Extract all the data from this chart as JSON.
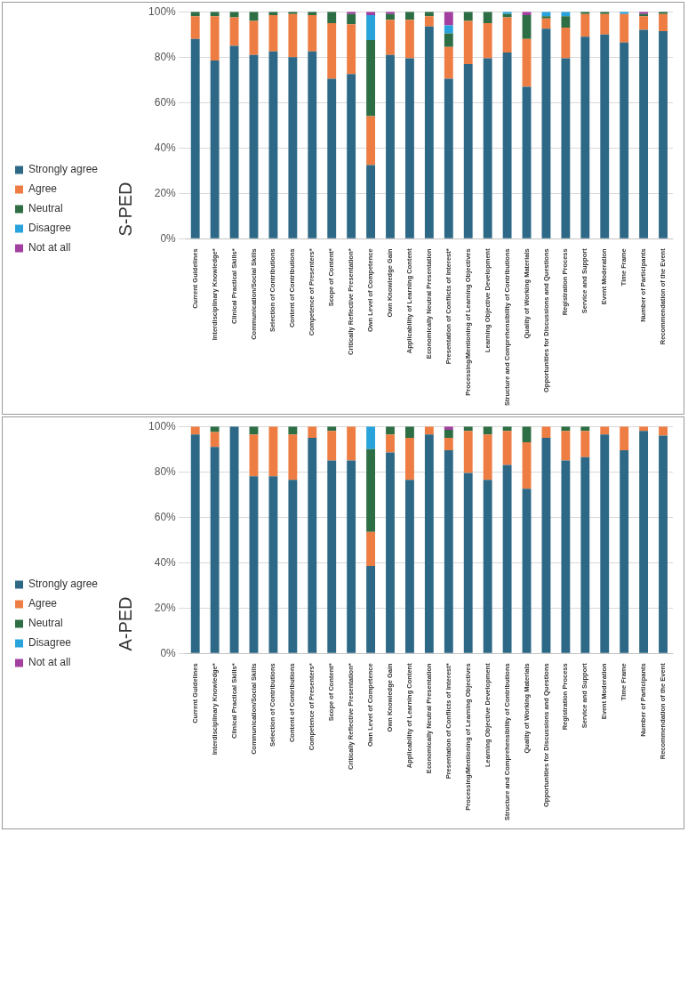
{
  "chart_data": [
    {
      "type": "bar",
      "title": "S-PED",
      "stacked": true,
      "legend": "left",
      "grid": "y",
      "ylim": [
        0,
        100
      ],
      "yticks": [
        {
          "value": 0,
          "label": "0%"
        },
        {
          "value": 20,
          "label": "20%"
        },
        {
          "value": 40,
          "label": "40%"
        },
        {
          "value": 60,
          "label": "60%"
        },
        {
          "value": 80,
          "label": "80%"
        },
        {
          "value": 100,
          "label": "100%"
        }
      ],
      "categories": [
        "Current Guidelines",
        "Interdisciplinary Knowledge*",
        "Clinical Practical Skills*",
        "Communication/Social Skills",
        "Selection of Contributions",
        "Content of Contributions",
        "Competence of Presenters*",
        "Scope of Content*",
        "Critically Reflective Presentation*",
        "Own Level of Competence",
        "Own Knowledge Gain",
        "Applicability of Learning Content",
        "Economically Neutral Presentation",
        "Presentation of Conflicts of Interest*",
        "Processing/Mentioning of Learning Objectives",
        "Learning Objective Development",
        "Structure and Comprehensibility of Contributions",
        "Quality of Working Materials",
        "Opportunities for Discussions and Questions",
        "Registration Process",
        "Service and Support",
        "Event Moderation",
        "Time Frame",
        "Number of Participants",
        "Recommendation of the Event"
      ],
      "series": [
        {
          "name": "Strongly agree",
          "color": "#2d6986",
          "values": [
            88,
            78.5,
            85,
            81,
            82.5,
            80,
            82.5,
            70.5,
            72.5,
            32.5,
            81,
            79.5,
            93.5,
            70.5,
            77,
            79.5,
            82,
            67,
            92.5,
            79.5,
            89,
            90,
            86.5,
            92,
            91.5
          ]
        },
        {
          "name": "Agree",
          "color": "#ed7d43",
          "values": [
            10,
            19.5,
            12.5,
            15,
            16,
            19,
            16,
            24.5,
            22,
            21.5,
            15.5,
            17,
            4.5,
            14,
            19,
            15.5,
            15.5,
            21,
            4.5,
            13.5,
            10,
            9,
            12.5,
            6,
            7.5
          ]
        },
        {
          "name": "Neutral",
          "color": "#2e6e45",
          "values": [
            2,
            2,
            2.5,
            4,
            1.5,
            1,
            1.5,
            5,
            4.5,
            33.5,
            2.5,
            3.5,
            2,
            6,
            4,
            5,
            1.5,
            10.5,
            1,
            5,
            1,
            1,
            0,
            1,
            1
          ]
        },
        {
          "name": "Disagree",
          "color": "#29a3dc",
          "values": [
            0,
            0,
            0,
            0,
            0,
            0,
            0,
            0,
            0,
            11,
            0,
            0,
            0,
            3.5,
            0,
            0,
            1,
            0,
            2,
            2,
            0,
            0,
            1,
            0,
            0
          ]
        },
        {
          "name": "Not at all",
          "color": "#a23fa0",
          "values": [
            0,
            0,
            0,
            0,
            0,
            0,
            0,
            0,
            1,
            1.5,
            1,
            0,
            0,
            6,
            0,
            0,
            0,
            1.5,
            0,
            0,
            0,
            0,
            0,
            1,
            0
          ]
        }
      ]
    },
    {
      "type": "bar",
      "title": "A-PED",
      "stacked": true,
      "legend": "left",
      "grid": "y",
      "ylim": [
        0,
        100
      ],
      "yticks": [
        {
          "value": 0,
          "label": "0%"
        },
        {
          "value": 20,
          "label": "20%"
        },
        {
          "value": 40,
          "label": "40%"
        },
        {
          "value": 60,
          "label": "60%"
        },
        {
          "value": 80,
          "label": "80%"
        },
        {
          "value": 100,
          "label": "100%"
        }
      ],
      "categories": [
        "Current Guidelines",
        "Interdisciplinary Knowledge*",
        "Clinical Practical Skills*",
        "Communication/Social Skills",
        "Selection of Contributions",
        "Content of Contributions",
        "Competence of Presenters*",
        "Scope of Content*",
        "Critically Reflective Presentation*",
        "Own Level of Competence",
        "Own Knowledge Gain",
        "Applicability of Learning Content",
        "Economically Neutral Presentation",
        "Presentation of Conflicts of Interest*",
        "Processing/Mentioning of Learning Objectives",
        "Learning Objective Development",
        "Structure and Comprehensibility of Contributions",
        "Quality of Working Materials",
        "Opportunities for Discussions and Questions",
        "Registration Process",
        "Service and Support",
        "Event Moderation",
        "Time Frame",
        "Number of Participants",
        "Recommendation of the Event"
      ],
      "series": [
        {
          "name": "Strongly agree",
          "color": "#2d6986",
          "values": [
            96.5,
            91,
            100,
            78,
            78,
            76.5,
            95,
            85,
            85,
            38.5,
            88.5,
            76.5,
            96.5,
            89.5,
            79.5,
            76.5,
            83,
            72.5,
            95,
            85,
            86.5,
            96.5,
            89.5,
            98,
            96
          ]
        },
        {
          "name": "Agree",
          "color": "#ed7d43",
          "values": [
            3.5,
            6.5,
            0,
            18.5,
            22,
            20,
            5,
            13,
            15,
            15,
            8,
            18.5,
            3.5,
            5.5,
            18.5,
            20,
            15,
            20.5,
            5,
            13,
            11.5,
            3.5,
            10.5,
            2,
            4
          ]
        },
        {
          "name": "Neutral",
          "color": "#2e6e45",
          "values": [
            0,
            2.5,
            0,
            3.5,
            0,
            3.5,
            0,
            2,
            0,
            36.5,
            3.5,
            5,
            0,
            3.5,
            2,
            3.5,
            2,
            7,
            0,
            2,
            2,
            0,
            0,
            0,
            0
          ]
        },
        {
          "name": "Disagree",
          "color": "#29a3dc",
          "values": [
            0,
            0,
            0,
            0,
            0,
            0,
            0,
            0,
            0,
            10,
            0,
            0,
            0,
            0,
            0,
            0,
            0,
            0,
            0,
            0,
            0,
            0,
            0,
            0,
            0
          ]
        },
        {
          "name": "Not at all",
          "color": "#a23fa0",
          "values": [
            0,
            0,
            0,
            0,
            0,
            0,
            0,
            0,
            0,
            0,
            0,
            0,
            0,
            1.5,
            0,
            0,
            0,
            0,
            0,
            0,
            0,
            0,
            0,
            0,
            0
          ]
        }
      ]
    }
  ]
}
